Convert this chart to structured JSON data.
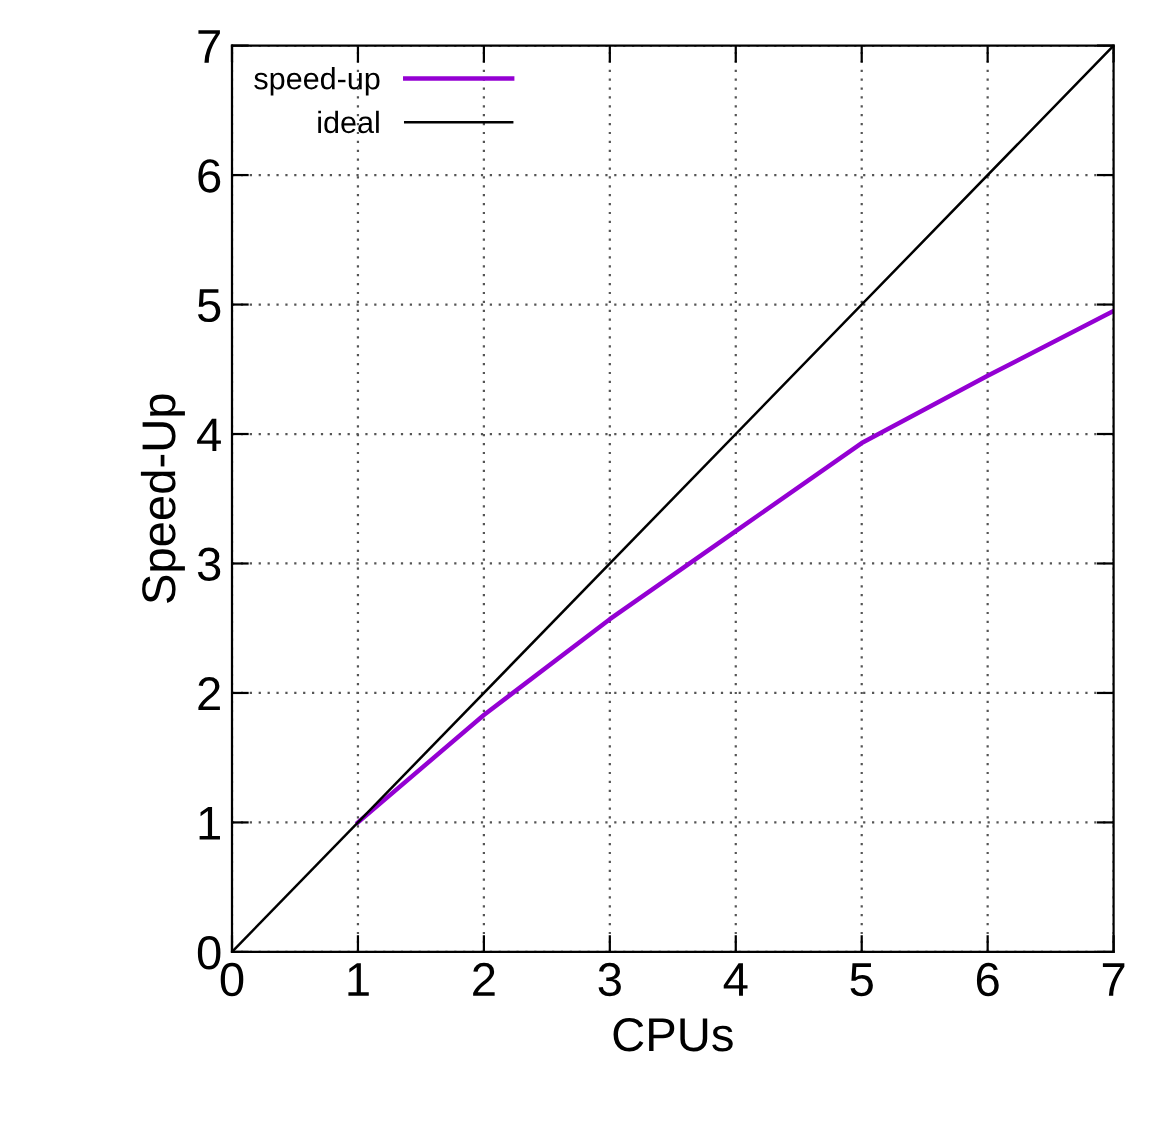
{
  "chart_data": {
    "type": "line",
    "xlabel": "CPUs",
    "ylabel": "Speed-Up",
    "xlim": [
      0,
      7
    ],
    "xticks": [
      0,
      1,
      2,
      3,
      4,
      5,
      6,
      7
    ],
    "ylim": [
      0,
      7
    ],
    "yticks": [
      0,
      1,
      2,
      3,
      4,
      5,
      6,
      7
    ],
    "grid": true,
    "legend": "top left",
    "line_style": "solid",
    "marker": "none",
    "series": [
      {
        "name": "speed-up",
        "color": "#9400d3",
        "x": [
          1,
          2,
          3,
          4,
          5,
          6,
          7
        ],
        "values": [
          1,
          1.83,
          2.57,
          3.25,
          3.93,
          4.45,
          4.95
        ]
      },
      {
        "name": "ideal",
        "color": "#000000",
        "x": [
          0,
          7
        ],
        "values": [
          0,
          7
        ]
      }
    ]
  }
}
